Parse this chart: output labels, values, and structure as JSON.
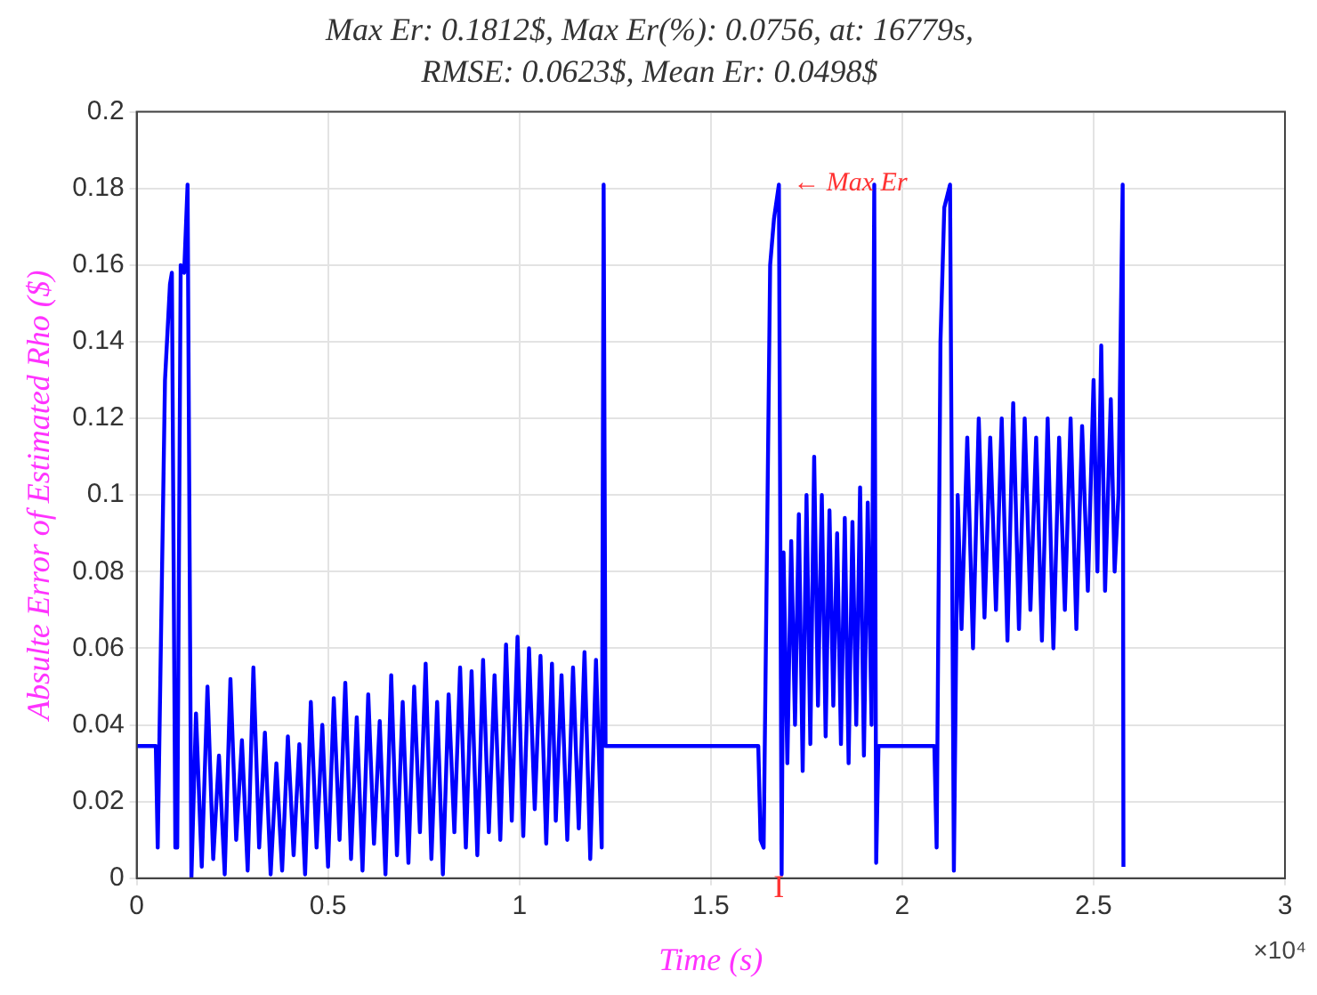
{
  "chart_data": {
    "type": "line",
    "title": "Max Er: 0.1812$, Max Er(%): 0.0756, at: 16779s,",
    "subtitle": "RMSE: 0.0623$, Mean Er: 0.0498$",
    "xlabel": "Time (s)",
    "ylabel": "Absulte Error of Estimated Rho ($)",
    "annotations": [
      {
        "text": "← Max Er",
        "x": 1.6779,
        "y": 0.1812
      },
      {
        "text": "I",
        "x": 1.6779,
        "y": 0
      },
      "×10⁴"
    ],
    "x": [
      0,
      0.05,
      0.055,
      0.074,
      0.087,
      0.092,
      0.101,
      0.106,
      0.115,
      0.124,
      0.133,
      0.143,
      0.145,
      0.155,
      0.17,
      0.185,
      0.2,
      0.215,
      0.23,
      0.245,
      0.26,
      0.275,
      0.29,
      0.305,
      0.32,
      0.335,
      0.35,
      0.365,
      0.38,
      0.395,
      0.41,
      0.425,
      0.44,
      0.455,
      0.47,
      0.485,
      0.5,
      0.515,
      0.53,
      0.545,
      0.56,
      0.575,
      0.59,
      0.605,
      0.62,
      0.635,
      0.65,
      0.665,
      0.68,
      0.695,
      0.71,
      0.725,
      0.74,
      0.755,
      0.77,
      0.785,
      0.8,
      0.815,
      0.83,
      0.845,
      0.86,
      0.875,
      0.89,
      0.905,
      0.92,
      0.935,
      0.95,
      0.965,
      0.98,
      0.995,
      1.01,
      1.025,
      1.04,
      1.055,
      1.07,
      1.085,
      1.095,
      1.11,
      1.125,
      1.14,
      1.155,
      1.17,
      1.185,
      1.2,
      1.215,
      1.22,
      1.225,
      1.624,
      1.63,
      1.638,
      1.655,
      1.665,
      1.6779,
      1.685,
      1.69,
      1.7,
      1.71,
      1.72,
      1.73,
      1.74,
      1.75,
      1.76,
      1.77,
      1.78,
      1.79,
      1.8,
      1.81,
      1.82,
      1.83,
      1.84,
      1.85,
      1.86,
      1.87,
      1.88,
      1.89,
      1.9,
      1.91,
      1.92,
      1.927,
      1.932,
      1.938,
      2.084,
      2.09,
      2.1,
      2.11,
      2.125,
      2.135,
      2.145,
      2.155,
      2.17,
      2.185,
      2.2,
      2.215,
      2.23,
      2.245,
      2.26,
      2.275,
      2.29,
      2.305,
      2.32,
      2.335,
      2.35,
      2.365,
      2.38,
      2.395,
      2.41,
      2.425,
      2.44,
      2.455,
      2.47,
      2.485,
      2.5,
      2.51,
      2.52,
      2.53,
      2.545,
      2.555,
      2.565,
      2.576,
      2.578
    ],
    "series": [
      {
        "color": "#0000ff",
        "values": [
          0.0345,
          0.0345,
          0.008,
          0.13,
          0.155,
          0.158,
          0.008,
          0.008,
          0.16,
          0.158,
          0.181,
          0,
          0,
          0.043,
          0.003,
          0.05,
          0.005,
          0.032,
          0.001,
          0.052,
          0.01,
          0.036,
          0.002,
          0.055,
          0.008,
          0.038,
          0.001,
          0.03,
          0.002,
          0.037,
          0.006,
          0.035,
          0.001,
          0.046,
          0.008,
          0.04,
          0.003,
          0.047,
          0.01,
          0.051,
          0.005,
          0.042,
          0.002,
          0.048,
          0.009,
          0.041,
          0.001,
          0.053,
          0.006,
          0.046,
          0.004,
          0.05,
          0.012,
          0.056,
          0.005,
          0.046,
          0.001,
          0.048,
          0.012,
          0.055,
          0.008,
          0.054,
          0.006,
          0.057,
          0.012,
          0.053,
          0.01,
          0.061,
          0.015,
          0.063,
          0.011,
          0.06,
          0.018,
          0.058,
          0.009,
          0.056,
          0.015,
          0.053,
          0.01,
          0.055,
          0.013,
          0.059,
          0.005,
          0.057,
          0.008,
          0.181,
          0.0345,
          0.0345,
          0.01,
          0.008,
          0.16,
          0.172,
          0.181,
          0.001,
          0.085,
          0.03,
          0.088,
          0.04,
          0.095,
          0.028,
          0.1,
          0.035,
          0.11,
          0.045,
          0.1,
          0.037,
          0.096,
          0.045,
          0.09,
          0.035,
          0.094,
          0.03,
          0.093,
          0.04,
          0.102,
          0.032,
          0.098,
          0.04,
          0.181,
          0.004,
          0.0345,
          0.0345,
          0.008,
          0.14,
          0.175,
          0.181,
          0.002,
          0.1,
          0.065,
          0.115,
          0.06,
          0.12,
          0.068,
          0.115,
          0.07,
          0.12,
          0.062,
          0.124,
          0.065,
          0.12,
          0.07,
          0.115,
          0.062,
          0.12,
          0.06,
          0.115,
          0.07,
          0.12,
          0.065,
          0.118,
          0.075,
          0.13,
          0.08,
          0.139,
          0.075,
          0.125,
          0.08,
          0.1,
          0.181,
          0.003
        ]
      }
    ],
    "xlim": [
      0,
      3
    ],
    "xticks": [
      0,
      0.5,
      1,
      1.5,
      2,
      2.5,
      3
    ],
    "ylim": [
      0,
      0.2
    ],
    "yticks": [
      0,
      0.02,
      0.04,
      0.06,
      0.08,
      0.1,
      0.12,
      0.14,
      0.16,
      0.18,
      0.2
    ],
    "grid": true,
    "legend": false,
    "marker": "none",
    "line_style": "solid"
  }
}
